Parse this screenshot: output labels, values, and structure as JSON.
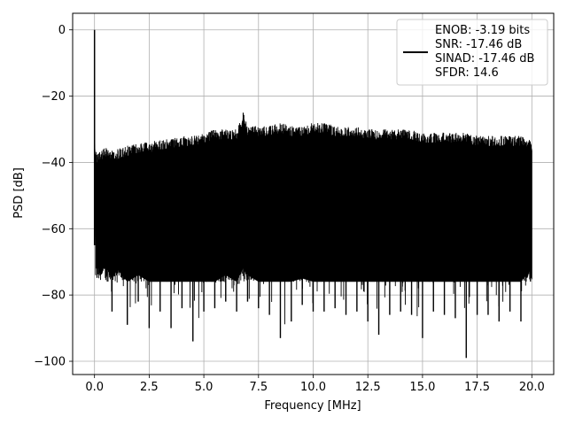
{
  "chart_data": {
    "type": "line",
    "title": "",
    "xlabel": "Frequency [MHz]",
    "ylabel": "PSD [dB]",
    "xlim": [
      -1.0,
      21.0
    ],
    "ylim": [
      -104,
      5
    ],
    "xticks": [
      0,
      2.5,
      5,
      7.5,
      10,
      12.5,
      15,
      17.5,
      20
    ],
    "xtick_labels": [
      "0.0",
      "2.5",
      "5.0",
      "7.5",
      "10.0",
      "12.5",
      "15.0",
      "17.5",
      "20.0"
    ],
    "yticks": [
      0,
      -20,
      -40,
      -60,
      -80,
      -100
    ],
    "ytick_labels": [
      "0",
      "−20",
      "−40",
      "−60",
      "−80",
      "−100"
    ],
    "grid": true,
    "legend_position": "upper-right",
    "legend_lines": [
      "ENOB: -3.19 bits",
      "SNR: -17.46 dB",
      "SINAD: -17.46 dB",
      "SFDR: 14.6"
    ],
    "line_color": "#000000",
    "series": [
      {
        "name": "ENOB: -3.19 bits",
        "x": [
          0.0,
          0.01,
          0.02,
          0.05,
          0.1,
          0.2,
          0.4,
          0.6,
          0.8,
          1.0,
          1.5,
          2.0,
          2.5,
          3.0,
          3.5,
          4.0,
          4.5,
          5.0,
          5.5,
          6.0,
          6.5,
          6.8,
          7.0,
          7.5,
          8.0,
          8.5,
          9.0,
          9.5,
          10.0,
          10.5,
          11.0,
          11.5,
          12.0,
          12.5,
          13.0,
          13.5,
          14.0,
          14.5,
          15.0,
          15.5,
          16.0,
          16.5,
          17.0,
          17.5,
          18.0,
          18.5,
          19.0,
          19.5,
          20.0
        ],
        "y_max": [
          -65,
          0,
          -31,
          -35,
          -37,
          -36,
          -36,
          -35,
          -36,
          -36,
          -35,
          -34,
          -34,
          -33,
          -33,
          -32,
          -32,
          -31,
          -30,
          -30,
          -30,
          -25,
          -29,
          -29,
          -29,
          -28,
          -29,
          -29,
          -28,
          -28,
          -29,
          -29,
          -29,
          -30,
          -30,
          -30,
          -30,
          -30,
          -31,
          -31,
          -31,
          -31,
          -31,
          -32,
          -32,
          -32,
          -32,
          -32,
          -33
        ],
        "y_min": [
          -65,
          -65,
          -70,
          -74,
          -75,
          -77,
          -78,
          -79,
          -85,
          -80,
          -89,
          -82,
          -90,
          -85,
          -90,
          -84,
          -94,
          -85,
          -84,
          -82,
          -85,
          -80,
          -82,
          -84,
          -86,
          -93,
          -88,
          -83,
          -85,
          -85,
          -84,
          -86,
          -85,
          -88,
          -92,
          -86,
          -85,
          -86,
          -93,
          -85,
          -86,
          -87,
          -99,
          -86,
          -86,
          -88,
          -85,
          -88,
          -80
        ]
      }
    ]
  }
}
